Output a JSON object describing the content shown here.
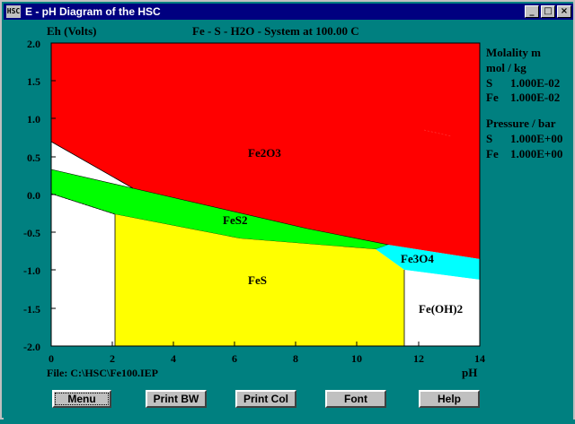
{
  "window": {
    "title": "E - pH Diagram of the HSC",
    "icon_label": "HSC",
    "controls": [
      "minimize-icon",
      "maximize-icon",
      "close-icon"
    ],
    "control_glyphs": {
      "minimize": "_",
      "maximize": "□",
      "close": "×"
    }
  },
  "diagram": {
    "ylabel": "Eh (Volts)",
    "system_title": "Fe - S - H2O - System at 100.00 C",
    "xlabel": "pH",
    "file": "File:  C:\\HSC\\Fe100.IEP",
    "yticks": [
      "2.0",
      "1.5",
      "1.0",
      "0.5",
      "0.0",
      "-0.5",
      "-1.0",
      "-1.5",
      "-2.0"
    ],
    "xticks": [
      "0",
      "2",
      "4",
      "6",
      "8",
      "10",
      "12",
      "14"
    ],
    "regions": [
      {
        "label": "Fe2O3",
        "color": "#ff0000"
      },
      {
        "label": "FeS2",
        "color": "#00ff00"
      },
      {
        "label": "Fe3O4",
        "color": "#00ffff"
      },
      {
        "label": "FeS",
        "color": "#ffff00"
      },
      {
        "label": "Fe(OH)2",
        "color": "#ffffff"
      }
    ]
  },
  "legend": {
    "molality_title": "Molality m",
    "molality_unit": "mol / kg",
    "molality": [
      {
        "element": "S",
        "value": "1.000E-02"
      },
      {
        "element": "Fe",
        "value": "1.000E-02"
      }
    ],
    "pressure_title": "Pressure / bar",
    "pressure": [
      {
        "element": "S",
        "value": "1.000E+00"
      },
      {
        "element": "Fe",
        "value": "1.000E+00"
      }
    ]
  },
  "buttons": {
    "menu": "Menu",
    "print_bw": "Print BW",
    "print_col": "Print Col",
    "font": "Font",
    "help": "Help"
  },
  "colors": {
    "background": "#008080",
    "titlebar": "#000080",
    "button_face": "#c0c0c0"
  }
}
